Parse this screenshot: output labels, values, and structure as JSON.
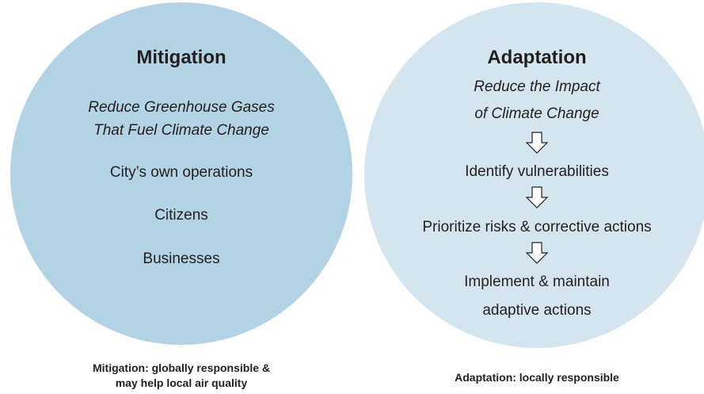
{
  "mitigation": {
    "title": "Mitigation",
    "subtitle": [
      "Reduce Greenhouse Gases",
      "That Fuel Climate Change"
    ],
    "items": [
      "City’s own operations",
      "Citizens",
      "Businesses"
    ],
    "caption": [
      "Mitigation: globally responsible &",
      "may help local air quality"
    ]
  },
  "adaptation": {
    "title": "Adaptation",
    "subtitle": [
      "Reduce the Impact",
      "of Climate Change"
    ],
    "steps": [
      [
        "Identify vulnerabilities"
      ],
      [
        "Prioritize risks & corrective actions"
      ],
      [
        "Implement & maintain",
        "adaptive actions"
      ]
    ],
    "caption": [
      "Adaptation: locally responsible"
    ]
  }
}
